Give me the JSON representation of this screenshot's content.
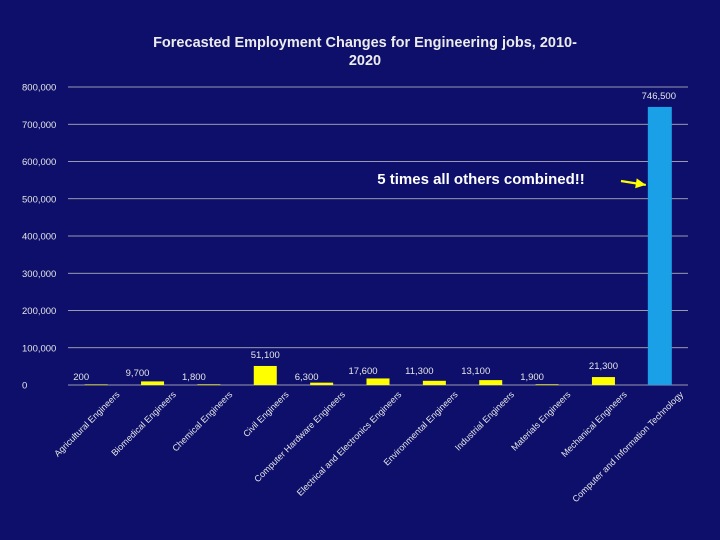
{
  "chart_data": {
    "type": "bar",
    "title": "Forecasted Employment Changes for Engineering jobs, 2010-2020",
    "title_lines": [
      "Forecasted Employment Changes for Engineering jobs, 2010-",
      "2020"
    ],
    "xlabel": "",
    "ylabel": "",
    "ylim": [
      0,
      800000
    ],
    "yticks": [
      0,
      100000,
      200000,
      300000,
      400000,
      500000,
      600000,
      700000,
      800000
    ],
    "ytick_labels": [
      "0",
      "100,000",
      "200,000",
      "300,000",
      "400,000",
      "500,000",
      "600,000",
      "700,000",
      "800,000"
    ],
    "categories": [
      "Agricultural Engineers",
      "Biomedical Engineers",
      "Chemical Engineers",
      "Civil Engineers",
      "Computer Hardware Engineers",
      "Electrical and Electronics Engineers",
      "Environmental Engineers",
      "Industrial Engineers",
      "Materials Engineers",
      "Mechanical Engineers",
      "Computer and Information Technology"
    ],
    "values": [
      200,
      9700,
      1800,
      51100,
      6300,
      17600,
      11300,
      13100,
      1900,
      21300,
      746500
    ],
    "value_labels": [
      "200",
      "9,700",
      "1,800",
      "51,100",
      "6,300",
      "17,600",
      "11,300",
      "13,100",
      "1,900",
      "21,300",
      "746,500"
    ],
    "bar_colors": [
      "#ffff00",
      "#ffff00",
      "#ffff00",
      "#ffff00",
      "#ffff00",
      "#ffff00",
      "#ffff00",
      "#ffff00",
      "#ffff00",
      "#ffff00",
      "#1aa0e6"
    ],
    "annotation": "5 times all others combined!!",
    "grid": true,
    "legend": "none"
  },
  "colors": {
    "background": "#0d0f6b",
    "gridline": "#c8c8c8",
    "highlight_bar": "#1aa0e6",
    "other_bars": "#ffff00",
    "annotation_arrow": "#ffff00"
  }
}
